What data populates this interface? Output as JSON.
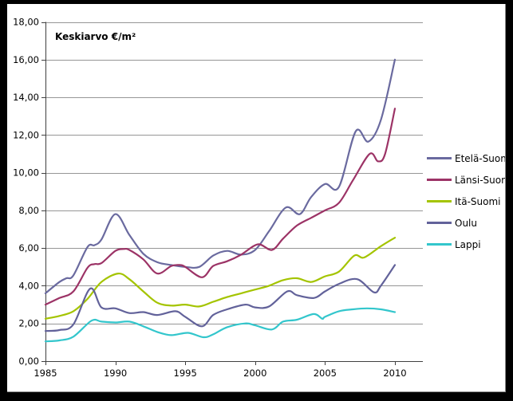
{
  "window": {
    "background": "#ffffff",
    "frame_color": "#000000",
    "inner_edge_color": "#8a8a8a"
  },
  "chart_data": {
    "type": "line",
    "title": "Keskiarvo €/m²",
    "xlabel": "",
    "ylabel": "",
    "xlim": [
      1985,
      2012
    ],
    "ylim": [
      0,
      18
    ],
    "grid": true,
    "legend_position": "right",
    "axis_color": "#404040",
    "grid_color": "#969696",
    "tick_label_color": "#000000",
    "x_ticks": [
      "1985",
      "1990",
      "1995",
      "2000",
      "2005",
      "2010"
    ],
    "x_tick_values": [
      1985,
      1990,
      1995,
      2000,
      2005,
      2010
    ],
    "y_tick_labels": [
      "0,00",
      "2,00",
      "4,00",
      "6,00",
      "8,00",
      "10,00",
      "12,00",
      "14,00",
      "16,00",
      "18,00"
    ],
    "y_tick_values": [
      0,
      2,
      4,
      6,
      8,
      10,
      12,
      14,
      16,
      18
    ],
    "series": [
      {
        "name": "Etelä-Suomi",
        "color": "#6a6a9f",
        "points": [
          [
            1985,
            3.6
          ],
          [
            1986,
            4.2
          ],
          [
            1986.5,
            4.4
          ],
          [
            1987,
            4.55
          ],
          [
            1988,
            6.05
          ],
          [
            1988.5,
            6.15
          ],
          [
            1989,
            6.45
          ],
          [
            1990,
            7.8
          ],
          [
            1991,
            6.7
          ],
          [
            1992,
            5.7
          ],
          [
            1993,
            5.25
          ],
          [
            1994,
            5.1
          ],
          [
            1995,
            5.0
          ],
          [
            1996,
            5.0
          ],
          [
            1997,
            5.6
          ],
          [
            1998,
            5.85
          ],
          [
            1999,
            5.65
          ],
          [
            2000,
            5.9
          ],
          [
            2001,
            6.9
          ],
          [
            2002.2,
            8.15
          ],
          [
            2003.2,
            7.8
          ],
          [
            2004,
            8.7
          ],
          [
            2005,
            9.4
          ],
          [
            2006,
            9.25
          ],
          [
            2007.2,
            12.2
          ],
          [
            2008.1,
            11.65
          ],
          [
            2009,
            12.8
          ],
          [
            2010,
            16.0
          ]
        ]
      },
      {
        "name": "Länsi-Suomi",
        "color": "#9c3366",
        "points": [
          [
            1985,
            3.0
          ],
          [
            1986,
            3.35
          ],
          [
            1987,
            3.7
          ],
          [
            1988,
            4.95
          ],
          [
            1988.5,
            5.15
          ],
          [
            1989,
            5.2
          ],
          [
            1990,
            5.85
          ],
          [
            1990.6,
            5.95
          ],
          [
            1991,
            5.9
          ],
          [
            1992,
            5.4
          ],
          [
            1993,
            4.65
          ],
          [
            1994,
            5.05
          ],
          [
            1994.6,
            5.1
          ],
          [
            1995,
            5.0
          ],
          [
            1996.2,
            4.45
          ],
          [
            1997,
            5.05
          ],
          [
            1998,
            5.3
          ],
          [
            1999,
            5.65
          ],
          [
            2000.2,
            6.2
          ],
          [
            2001.2,
            5.9
          ],
          [
            2002,
            6.5
          ],
          [
            2003,
            7.2
          ],
          [
            2004,
            7.6
          ],
          [
            2005,
            8.0
          ],
          [
            2006,
            8.4
          ],
          [
            2007,
            9.6
          ],
          [
            2008.2,
            11.0
          ],
          [
            2008.8,
            10.6
          ],
          [
            2009.3,
            11.0
          ],
          [
            2010,
            13.4
          ]
        ]
      },
      {
        "name": "Itä-Suomi",
        "color": "#a4c400",
        "points": [
          [
            1985,
            2.25
          ],
          [
            1986,
            2.4
          ],
          [
            1987,
            2.65
          ],
          [
            1988,
            3.3
          ],
          [
            1989,
            4.2
          ],
          [
            1990.2,
            4.65
          ],
          [
            1991,
            4.35
          ],
          [
            1992,
            3.7
          ],
          [
            1993,
            3.1
          ],
          [
            1994,
            2.95
          ],
          [
            1995,
            3.0
          ],
          [
            1996,
            2.9
          ],
          [
            1997,
            3.15
          ],
          [
            1998,
            3.4
          ],
          [
            1999,
            3.6
          ],
          [
            2000,
            3.8
          ],
          [
            2001,
            4.0
          ],
          [
            2002,
            4.3
          ],
          [
            2003,
            4.4
          ],
          [
            2004,
            4.2
          ],
          [
            2005,
            4.5
          ],
          [
            2006,
            4.75
          ],
          [
            2007.1,
            5.6
          ],
          [
            2007.8,
            5.5
          ],
          [
            2009,
            6.1
          ],
          [
            2010,
            6.55
          ]
        ]
      },
      {
        "name": "Oulu",
        "color": "#62629a",
        "points": [
          [
            1985,
            1.6
          ],
          [
            1986,
            1.65
          ],
          [
            1987,
            1.95
          ],
          [
            1988.2,
            3.85
          ],
          [
            1989,
            2.85
          ],
          [
            1990,
            2.8
          ],
          [
            1991,
            2.55
          ],
          [
            1992,
            2.6
          ],
          [
            1993,
            2.45
          ],
          [
            1994.3,
            2.65
          ],
          [
            1995,
            2.35
          ],
          [
            1996.2,
            1.85
          ],
          [
            1997,
            2.45
          ],
          [
            1998,
            2.75
          ],
          [
            1999.3,
            3.0
          ],
          [
            2000,
            2.85
          ],
          [
            2001,
            2.9
          ],
          [
            2002.3,
            3.7
          ],
          [
            2003,
            3.5
          ],
          [
            2004.2,
            3.35
          ],
          [
            2005,
            3.7
          ],
          [
            2006,
            4.1
          ],
          [
            2007.3,
            4.35
          ],
          [
            2008.5,
            3.65
          ],
          [
            2009,
            4.0
          ],
          [
            2010,
            5.1
          ]
        ]
      },
      {
        "name": "Lappi",
        "color": "#33c6cc",
        "points": [
          [
            1985,
            1.05
          ],
          [
            1986,
            1.1
          ],
          [
            1987,
            1.3
          ],
          [
            1988.3,
            2.15
          ],
          [
            1989,
            2.1
          ],
          [
            1990,
            2.05
          ],
          [
            1991,
            2.1
          ],
          [
            1992,
            1.85
          ],
          [
            1993,
            1.55
          ],
          [
            1994,
            1.38
          ],
          [
            1995.2,
            1.5
          ],
          [
            1996.3,
            1.27
          ],
          [
            1997,
            1.42
          ],
          [
            1998,
            1.8
          ],
          [
            1999.3,
            2.0
          ],
          [
            2000,
            1.9
          ],
          [
            2001.2,
            1.68
          ],
          [
            2002,
            2.1
          ],
          [
            2003,
            2.2
          ],
          [
            2004.2,
            2.5
          ],
          [
            2004.8,
            2.25
          ],
          [
            2005,
            2.35
          ],
          [
            2006,
            2.65
          ],
          [
            2007,
            2.75
          ],
          [
            2008,
            2.8
          ],
          [
            2009,
            2.75
          ],
          [
            2010,
            2.6
          ]
        ]
      }
    ]
  }
}
